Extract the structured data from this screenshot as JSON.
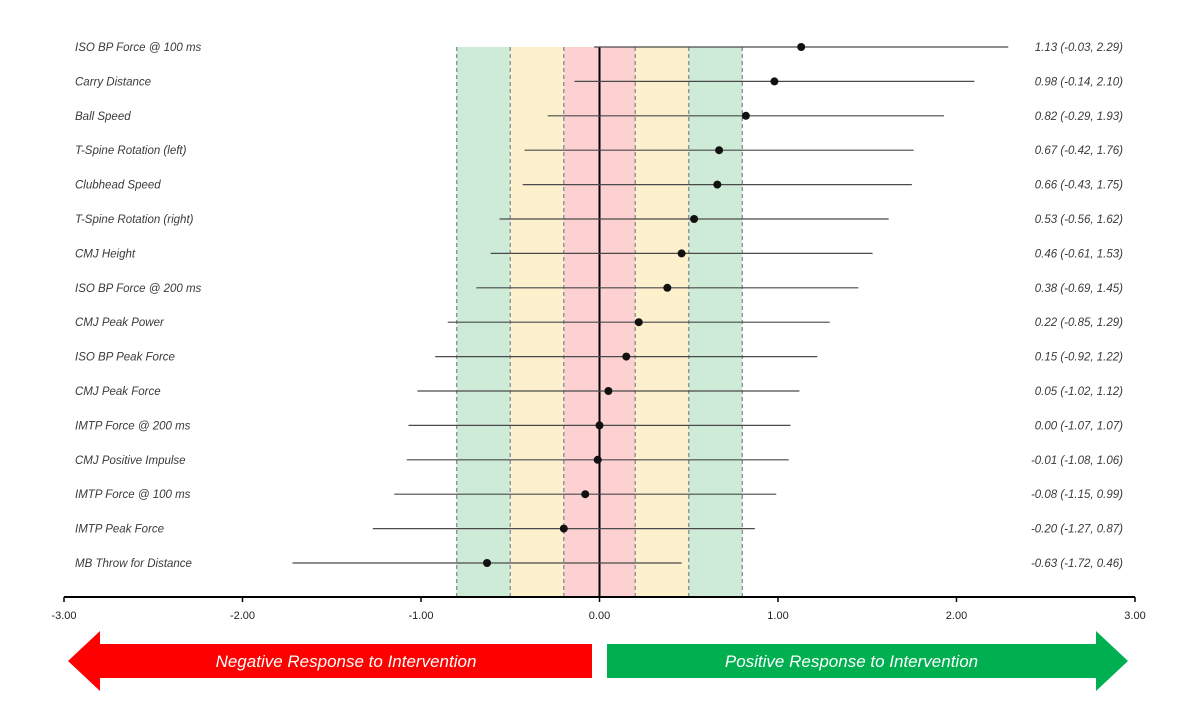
{
  "chart_data": {
    "type": "forest",
    "title": "",
    "xlabel": "",
    "ylabel": "",
    "xlim": [
      -3.0,
      3.0
    ],
    "x_ticks": [
      "-3.00",
      "-2.00",
      "-1.00",
      "0.00",
      "1.00",
      "2.00",
      "3.00"
    ],
    "x_tick_values": [
      -3,
      -2,
      -1,
      0,
      1,
      2,
      3
    ],
    "bands": [
      {
        "from": -0.8,
        "to": -0.5,
        "color": "#cdebd6"
      },
      {
        "from": -0.5,
        "to": -0.2,
        "color": "#fdf0cc"
      },
      {
        "from": -0.2,
        "to": 0.2,
        "color": "#fdd0d2"
      },
      {
        "from": 0.2,
        "to": 0.5,
        "color": "#fdf0cc"
      },
      {
        "from": 0.5,
        "to": 0.8,
        "color": "#cdebd6"
      }
    ],
    "threshold_lines": [
      -0.8,
      -0.5,
      -0.2,
      0.2,
      0.5,
      0.8
    ],
    "rows": [
      {
        "label": "ISO BP Force @ 100 ms",
        "est": 1.13,
        "lo": -0.03,
        "hi": 2.29,
        "text": "1.13 (-0.03, 2.29)"
      },
      {
        "label": "Carry Distance",
        "est": 0.98,
        "lo": -0.14,
        "hi": 2.1,
        "text": "0.98 (-0.14, 2.10)"
      },
      {
        "label": "Ball Speed",
        "est": 0.82,
        "lo": -0.29,
        "hi": 1.93,
        "text": "0.82 (-0.29, 1.93)"
      },
      {
        "label": "T-Spine Rotation (left)",
        "est": 0.67,
        "lo": -0.42,
        "hi": 1.76,
        "text": "0.67 (-0.42, 1.76)"
      },
      {
        "label": "Clubhead Speed",
        "est": 0.66,
        "lo": -0.43,
        "hi": 1.75,
        "text": "0.66 (-0.43, 1.75)"
      },
      {
        "label": "T-Spine Rotation (right)",
        "est": 0.53,
        "lo": -0.56,
        "hi": 1.62,
        "text": "0.53 (-0.56, 1.62)"
      },
      {
        "label": "CMJ Height",
        "est": 0.46,
        "lo": -0.61,
        "hi": 1.53,
        "text": "0.46 (-0.61, 1.53)"
      },
      {
        "label": "ISO BP Force @ 200 ms",
        "est": 0.38,
        "lo": -0.69,
        "hi": 1.45,
        "text": "0.38 (-0.69, 1.45)"
      },
      {
        "label": "CMJ Peak Power",
        "est": 0.22,
        "lo": -0.85,
        "hi": 1.29,
        "text": "0.22 (-0.85, 1.29)"
      },
      {
        "label": "ISO BP Peak Force",
        "est": 0.15,
        "lo": -0.92,
        "hi": 1.22,
        "text": "0.15 (-0.92, 1.22)"
      },
      {
        "label": "CMJ Peak Force",
        "est": 0.05,
        "lo": -1.02,
        "hi": 1.12,
        "text": "0.05 (-1.02, 1.12)"
      },
      {
        "label": "IMTP Force @ 200 ms",
        "est": 0.0,
        "lo": -1.07,
        "hi": 1.07,
        "text": "0.00 (-1.07, 1.07)"
      },
      {
        "label": "CMJ Positive Impulse",
        "est": -0.01,
        "lo": -1.08,
        "hi": 1.06,
        "text": "-0.01 (-1.08, 1.06)"
      },
      {
        "label": "IMTP Force @ 100 ms",
        "est": -0.08,
        "lo": -1.15,
        "hi": 0.99,
        "text": "-0.08 (-1.15, 0.99)"
      },
      {
        "label": "IMTP Peak Force",
        "est": -0.2,
        "lo": -1.27,
        "hi": 0.87,
        "text": "-0.20 (-1.27, 0.87)"
      },
      {
        "label": "MB Throw for Distance",
        "est": -0.63,
        "lo": -1.72,
        "hi": 0.46,
        "text": "-0.63 (-1.72, 0.46)"
      }
    ],
    "arrows": {
      "negative": {
        "text": "Negative Response to Intervention",
        "color": "#ff0000"
      },
      "positive": {
        "text": "Positive Response to Intervention",
        "color": "#00b050"
      }
    },
    "grid": false
  }
}
